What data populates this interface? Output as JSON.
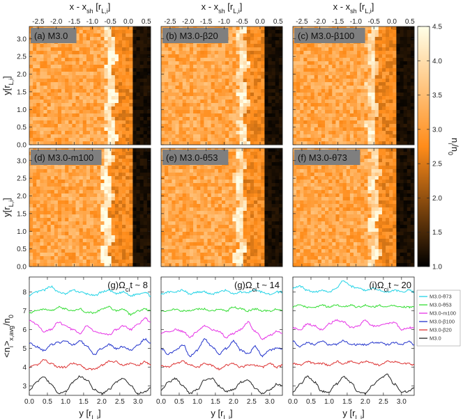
{
  "colors": {
    "map_low": "#000000",
    "map_mid": "#ff8c1a",
    "map_high": "#ffffe8",
    "label_box": "#7f7f7f"
  },
  "top_axis": {
    "label_main": "x - x",
    "label_sub": "sh",
    "label_unit_open": "[r",
    "label_unit_sub": "L,i",
    "label_unit_close": "]",
    "ticks": [
      "-2.5",
      "-2.0",
      "-1.5",
      "-1.0",
      "-0.5",
      "0.0",
      "0.5"
    ],
    "xlim": [
      -2.75,
      0.62
    ]
  },
  "map_y_axis": {
    "label_main": "y[r",
    "label_sub": "L,i",
    "label_close": "]",
    "ticks": [
      "0.0",
      "0.5",
      "1.0",
      "1.5",
      "2.0",
      "2.5",
      "3.0"
    ],
    "ylim": [
      0.0,
      3.35
    ]
  },
  "colorbar": {
    "label_main": "n",
    "label_sub1": "i",
    "label_mid": "/n",
    "label_sub2": "0",
    "ticks": [
      "4.5",
      "4.0",
      "3.5",
      "3.0",
      "2.5",
      "2.0",
      "1.5",
      "1.0"
    ],
    "range": [
      1.0,
      4.5
    ]
  },
  "maps": [
    {
      "label": "(a) M3.0",
      "shock_x": -0.5,
      "overshoot": 4.3
    },
    {
      "label": "(b) M3.0-β20",
      "shock_x": -0.5,
      "overshoot": 4.2
    },
    {
      "label": "(c) M3.0-β100",
      "shock_x": -0.55,
      "overshoot": 4.1
    },
    {
      "label": "(d) M3.0-m100",
      "shock_x": -0.6,
      "overshoot": 4.4
    },
    {
      "label": "(e) M3.0-θ53",
      "shock_x": -0.55,
      "overshoot": 4.2
    },
    {
      "label": "(f) M3.0-θ73",
      "shock_x": -0.5,
      "overshoot": 4.1
    }
  ],
  "profile_axis": {
    "ylabel": "<n",
    "ylabel_sub1": "i",
    "ylabel_mid": ">",
    "ylabel_sub2": "x,avg",
    "ylabel_end": "/n",
    "ylabel_sub3": "0",
    "yticks": [
      "3",
      "4",
      "5",
      "6",
      "7",
      "8"
    ],
    "xticks": [
      "0.0",
      "0.5",
      "1.0",
      "1.5",
      "2.0",
      "2.5",
      "3.0"
    ],
    "xlabel": "y [r",
    "xlabel_sub": "L,i",
    "xlabel_close": "]",
    "ylim": [
      2.5,
      8.8
    ],
    "xlim": [
      0.0,
      3.35
    ]
  },
  "profile_panels": [
    {
      "label_pre": "(g)Ω",
      "label_sub": "ci",
      "label_post": "t ~ 8"
    },
    {
      "label_pre": "(g)Ω",
      "label_sub": "ci",
      "label_post": "t ~ 14"
    },
    {
      "label_pre": "(i)Ω",
      "label_sub": "ci",
      "label_post": "t ~ 20"
    }
  ],
  "legend": [
    {
      "name": "M3.0-θ73",
      "color": "#22d3e6"
    },
    {
      "name": "M3.0-θ53",
      "color": "#33dd33"
    },
    {
      "name": "M3.0-m100",
      "color": "#e633e6"
    },
    {
      "name": "M3.0-β100",
      "color": "#2233cc"
    },
    {
      "name": "M3.0-β20",
      "color": "#dd3333"
    },
    {
      "name": "M3.0",
      "color": "#222222"
    }
  ],
  "chart_data": [
    {
      "type": "heatmap",
      "xlim": [
        -2.75,
        0.62
      ],
      "ylim": [
        0.0,
        3.35
      ],
      "color_range": [
        1.0,
        4.5
      ]
    },
    {
      "type": "line",
      "xlim": [
        0.0,
        3.35
      ],
      "ylim": [
        2.5,
        8.8
      ],
      "x": [
        0.0,
        0.2,
        0.4,
        0.6,
        0.8,
        1.0,
        1.2,
        1.4,
        1.6,
        1.8,
        2.0,
        2.2,
        2.4,
        2.6,
        2.8,
        3.0,
        3.2,
        3.35
      ],
      "panels": [
        {
          "title": "Ωci t ~ 8",
          "series": [
            {
              "name": "M3.0-θ73",
              "values": [
                7.8,
                8.0,
                8.1,
                8.3,
                8.0,
                7.9,
                8.1,
                8.0,
                7.9,
                7.8,
                8.0,
                8.1,
                7.9,
                8.0,
                7.8,
                7.9,
                8.0,
                7.8
              ]
            },
            {
              "name": "M3.0-θ53",
              "values": [
                6.9,
                7.0,
                7.1,
                7.0,
                7.2,
                7.1,
                7.0,
                7.1,
                6.9,
                6.9,
                7.1,
                7.2,
                7.0,
                7.1,
                6.8,
                7.0,
                7.1,
                7.0
              ]
            },
            {
              "name": "M3.0-m100",
              "values": [
                6.5,
                6.3,
                5.9,
                6.0,
                6.4,
                6.2,
                6.0,
                5.8,
                6.2,
                5.9,
                5.8,
                5.7,
                6.0,
                6.2,
                6.0,
                6.3,
                6.6,
                6.4
              ]
            },
            {
              "name": "M3.0-β100",
              "values": [
                5.3,
                5.1,
                4.9,
                5.2,
                5.3,
                5.4,
                5.2,
                5.4,
                5.1,
                4.7,
                5.0,
                5.2,
                5.0,
                5.1,
                4.9,
                5.2,
                5.5,
                5.3
              ]
            },
            {
              "name": "M3.0-β20",
              "values": [
                4.0,
                4.1,
                4.4,
                4.2,
                4.0,
                4.0,
                4.2,
                4.1,
                3.9,
                3.9,
                4.1,
                4.3,
                4.3,
                4.1,
                4.2,
                4.1,
                4.3,
                4.1
              ]
            },
            {
              "name": "M3.0",
              "values": [
                2.8,
                3.2,
                3.5,
                3.1,
                2.6,
                2.7,
                3.2,
                3.5,
                3.3,
                2.8,
                2.6,
                2.8,
                3.2,
                3.4,
                3.0,
                2.6,
                2.7,
                2.9
              ]
            }
          ]
        },
        {
          "title": "Ωci t ~ 14",
          "series": [
            {
              "name": "M3.0-θ73",
              "values": [
                7.9,
                8.0,
                8.0,
                8.1,
                7.9,
                8.0,
                8.0,
                7.9,
                8.0,
                8.1,
                7.9,
                8.0,
                8.0,
                8.1,
                8.0,
                7.9,
                8.0,
                8.0
              ]
            },
            {
              "name": "M3.0-θ53",
              "values": [
                7.0,
                7.0,
                7.1,
                7.0,
                7.0,
                7.1,
                7.1,
                7.0,
                7.1,
                7.0,
                7.2,
                7.1,
                7.0,
                7.1,
                7.0,
                7.0,
                7.1,
                7.0
              ]
            },
            {
              "name": "M3.0-m100",
              "values": [
                5.8,
                5.9,
                6.0,
                5.9,
                5.6,
                5.9,
                6.2,
                6.0,
                5.9,
                5.6,
                5.8,
                6.0,
                6.4,
                5.9,
                5.5,
                5.7,
                5.9,
                5.8
              ]
            },
            {
              "name": "M3.0-β100",
              "values": [
                5.0,
                4.7,
                4.9,
                5.2,
                4.6,
                4.9,
                5.5,
                5.1,
                4.7,
                5.0,
                5.4,
                4.9,
                4.7,
                5.1,
                4.6,
                4.9,
                5.0,
                5.0
              ]
            },
            {
              "name": "M3.0-β20",
              "values": [
                4.1,
                4.0,
                4.2,
                4.3,
                4.1,
                4.0,
                4.2,
                4.1,
                3.9,
                4.1,
                4.2,
                4.0,
                4.1,
                4.1,
                4.0,
                4.2,
                4.0,
                4.1
              ]
            },
            {
              "name": "M3.0",
              "values": [
                2.8,
                3.2,
                3.4,
                3.0,
                2.6,
                2.8,
                3.3,
                3.4,
                3.0,
                2.7,
                2.8,
                3.2,
                3.3,
                2.9,
                2.6,
                2.8,
                3.1,
                3.0
              ]
            }
          ]
        },
        {
          "title": "Ωci t ~ 20",
          "series": [
            {
              "name": "M3.0-θ73",
              "values": [
                8.2,
                8.3,
                8.1,
                8.0,
                8.1,
                8.0,
                8.2,
                8.6,
                8.3,
                8.2,
                8.1,
                8.2,
                8.1,
                8.0,
                8.1,
                8.0,
                8.1,
                8.0
              ]
            },
            {
              "name": "M3.0-θ53",
              "values": [
                7.2,
                7.3,
                7.2,
                7.2,
                7.3,
                7.2,
                7.3,
                7.2,
                7.3,
                7.2,
                7.3,
                7.2,
                7.3,
                7.2,
                7.3,
                7.2,
                7.2,
                7.2
              ]
            },
            {
              "name": "M3.0-m100",
              "values": [
                6.1,
                6.0,
                6.3,
                6.2,
                6.0,
                6.3,
                6.5,
                6.4,
                6.1,
                6.2,
                6.5,
                6.2,
                6.2,
                6.3,
                6.4,
                6.0,
                6.1,
                6.1
              ]
            },
            {
              "name": "M3.0-β100",
              "values": [
                5.4,
                5.1,
                5.3,
                5.2,
                5.4,
                5.2,
                5.2,
                5.4,
                5.2,
                5.2,
                5.2,
                5.3,
                5.3,
                5.2,
                5.3,
                5.2,
                5.4,
                5.2
              ]
            },
            {
              "name": "M3.0-β20",
              "values": [
                4.2,
                4.1,
                4.3,
                4.2,
                4.2,
                4.1,
                4.3,
                4.2,
                4.3,
                4.2,
                4.3,
                4.2,
                4.1,
                4.3,
                4.3,
                4.2,
                4.2,
                4.1
              ]
            },
            {
              "name": "M3.0",
              "values": [
                2.7,
                3.1,
                3.5,
                3.2,
                2.7,
                2.7,
                3.1,
                3.5,
                3.2,
                2.7,
                2.6,
                3.0,
                3.4,
                3.6,
                3.1,
                2.7,
                2.7,
                2.9
              ]
            }
          ]
        }
      ]
    }
  ]
}
